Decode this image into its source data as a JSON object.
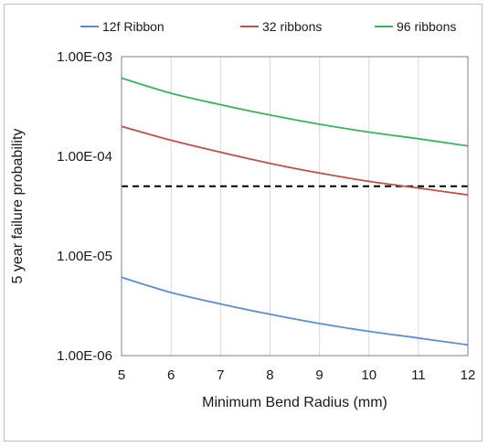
{
  "chart_data": {
    "type": "line",
    "title": "",
    "xlabel": "Minimum Bend Radius (mm)",
    "ylabel": "5 year failure probability",
    "y_scale": "log",
    "xlim": [
      5,
      12
    ],
    "ylim": [
      1e-06,
      0.001
    ],
    "x_ticks": [
      5,
      6,
      7,
      8,
      9,
      10,
      11,
      12
    ],
    "x_tick_labels": [
      "5",
      "6",
      "7",
      "8",
      "9",
      "10",
      "11",
      "12"
    ],
    "y_ticks": [
      1e-06,
      1e-05,
      0.0001,
      0.001
    ],
    "y_tick_labels": [
      "1.00E-06",
      "1.00E-05",
      "1.00E-04",
      "1.00E-03"
    ],
    "grid": {
      "x": true,
      "y": false
    },
    "legend_position": "top",
    "x": [
      5,
      6,
      7,
      8,
      9,
      10,
      11,
      12
    ],
    "series": [
      {
        "name": "12f Ribbon",
        "color": "#5b8fd1",
        "values": [
          6.1e-06,
          4.3e-06,
          3.3e-06,
          2.6e-06,
          2.1e-06,
          1.75e-06,
          1.5e-06,
          1.28e-06
        ]
      },
      {
        "name": "32 ribbons",
        "color": "#c0504d",
        "values": [
          0.0002,
          0.000145,
          0.00011,
          8.5e-05,
          6.8e-05,
          5.6e-05,
          4.8e-05,
          4.1e-05
        ]
      },
      {
        "name": "96 ribbons",
        "color": "#3cb35c",
        "values": [
          0.00061,
          0.00043,
          0.00033,
          0.00026,
          0.00021,
          0.000175,
          0.00015,
          0.000127
        ]
      }
    ],
    "reference_line": {
      "y": 5e-05,
      "style": "dashed",
      "color": "#000000"
    }
  }
}
